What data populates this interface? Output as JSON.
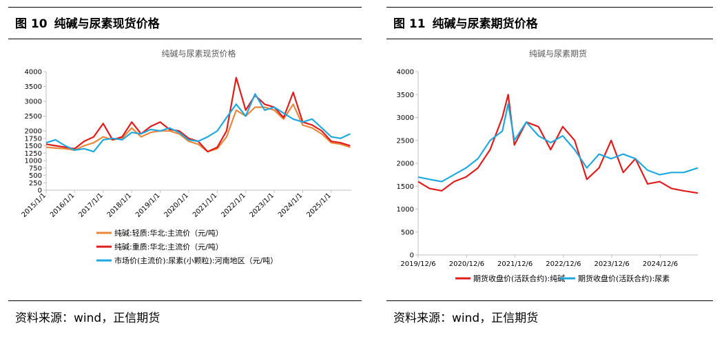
{
  "figures": [
    {
      "fig_label": "图 10",
      "fig_title": "纯碱与尿素现货价格",
      "source": "资料来源：wind，正信期货"
    },
    {
      "fig_label": "图 11",
      "fig_title": "纯碱与尿素期货价格",
      "source": "资料来源：wind，正信期货"
    }
  ],
  "colors": {
    "orange": "#E8873A",
    "red": "#E01B1B",
    "blue": "#1FA8DF",
    "axis": "#BFBFBF",
    "text": "#595959"
  },
  "chart_data": [
    {
      "type": "line",
      "title": "纯碱与尿素现货价格",
      "xlabel": "",
      "ylabel": "",
      "ylim": [
        0,
        4000
      ],
      "yticks": [
        0,
        250,
        500,
        750,
        1000,
        1250,
        1500,
        1750,
        2000,
        2500,
        3000,
        3500,
        4000
      ],
      "ytick_labels": [
        "0",
        "250",
        "500",
        "750",
        "1000",
        "1250",
        "1500",
        "1750",
        "2000",
        "2500",
        "3000",
        "3500",
        "4000"
      ],
      "xlim": [
        "2015-01-01",
        "2025-09-15"
      ],
      "xticks": [
        "2015/1/1",
        "2016/1/1",
        "2017/1/1",
        "2018/1/1",
        "2019/1/1",
        "2020/1/1",
        "2021/1/1",
        "2022/1/1",
        "2023/1/1",
        "2024/1/1",
        "2025/1/1"
      ],
      "legend_position": "bottom",
      "x": [
        "2015-01-01",
        "2015-05-01",
        "2015-09-01",
        "2016-01-01",
        "2016-05-01",
        "2016-09-01",
        "2017-01-01",
        "2017-05-01",
        "2017-09-01",
        "2018-01-01",
        "2018-05-01",
        "2018-09-01",
        "2019-01-01",
        "2019-05-01",
        "2019-09-01",
        "2020-01-01",
        "2020-05-01",
        "2020-09-01",
        "2021-01-01",
        "2021-05-01",
        "2021-09-01",
        "2022-01-01",
        "2022-05-01",
        "2022-09-01",
        "2023-01-01",
        "2023-05-01",
        "2023-09-01",
        "2024-01-01",
        "2024-05-01",
        "2024-09-01",
        "2025-01-01",
        "2025-05-01",
        "2025-09-01"
      ],
      "series": [
        {
          "name": "纯碱:轻质:华北:主流价（元/吨）",
          "color": "#E8873A",
          "values": [
            1450,
            1420,
            1400,
            1350,
            1500,
            1600,
            1800,
            1700,
            1750,
            2100,
            1800,
            1950,
            2000,
            2000,
            1900,
            1650,
            1550,
            1300,
            1400,
            1800,
            2700,
            2500,
            2800,
            2800,
            2700,
            2400,
            2900,
            2200,
            2100,
            1900,
            1600,
            1550,
            1450
          ]
        },
        {
          "name": "纯碱:重质:华北:主流价（元/吨）",
          "color": "#E01B1B",
          "values": [
            1550,
            1500,
            1450,
            1400,
            1650,
            1800,
            2250,
            1700,
            1800,
            2300,
            1900,
            2150,
            2300,
            2050,
            2000,
            1750,
            1650,
            1300,
            1450,
            2000,
            3800,
            2700,
            3200,
            2900,
            2800,
            2450,
            3300,
            2300,
            2200,
            2000,
            1650,
            1600,
            1500
          ]
        },
        {
          "name": "市场价(主流价):尿素(小颗粒):河南地区（元/吨）",
          "color": "#1FA8DF",
          "values": [
            1600,
            1700,
            1500,
            1350,
            1400,
            1300,
            1700,
            1750,
            1700,
            1950,
            1900,
            2050,
            2000,
            2100,
            1950,
            1700,
            1650,
            1800,
            2000,
            2450,
            2900,
            2500,
            3250,
            2700,
            2800,
            2600,
            2400,
            2300,
            2400,
            2100,
            1800,
            1750,
            1900
          ]
        }
      ]
    },
    {
      "type": "line",
      "title": "纯碱与尿素期货",
      "xlabel": "",
      "ylabel": "",
      "ylim": [
        0,
        4000
      ],
      "yticks": [
        0,
        500,
        1000,
        1500,
        2000,
        2500,
        3000,
        3500,
        4000
      ],
      "ytick_labels": [
        "0",
        "500",
        "1000",
        "1500",
        "2000",
        "2500",
        "3000",
        "3500",
        "4000"
      ],
      "xlim": [
        "2019-12-06",
        "2025-09-15"
      ],
      "xticks": [
        "2019/12/6",
        "2020/12/6",
        "2021/12/6",
        "2022/12/6",
        "2023/12/6",
        "2024/12/6"
      ],
      "legend_position": "bottom",
      "x": [
        "2019-12-06",
        "2020-03-01",
        "2020-06-01",
        "2020-09-01",
        "2020-12-01",
        "2021-03-01",
        "2021-06-01",
        "2021-09-01",
        "2021-10-15",
        "2021-12-01",
        "2022-03-01",
        "2022-06-01",
        "2022-09-01",
        "2022-12-01",
        "2023-03-01",
        "2023-06-01",
        "2023-09-01",
        "2023-12-01",
        "2024-03-01",
        "2024-06-01",
        "2024-09-01",
        "2024-12-01",
        "2025-03-01",
        "2025-06-01",
        "2025-09-15"
      ],
      "series": [
        {
          "name": "期货收盘价(活跃合约):纯碱",
          "color": "#E01B1B",
          "values": [
            1600,
            1450,
            1400,
            1600,
            1700,
            1900,
            2300,
            3000,
            3500,
            2400,
            2900,
            2800,
            2300,
            2800,
            2500,
            1650,
            1900,
            2500,
            1800,
            2100,
            1550,
            1600,
            1450,
            1400,
            1350
          ]
        },
        {
          "name": "期货收盘价(活跃合约):尿素",
          "color": "#1FA8DF",
          "values": [
            1700,
            1650,
            1600,
            1750,
            1900,
            2100,
            2500,
            2700,
            3300,
            2500,
            2900,
            2600,
            2450,
            2600,
            2300,
            1900,
            2200,
            2100,
            2200,
            2100,
            1850,
            1750,
            1800,
            1800,
            1900
          ]
        }
      ]
    }
  ]
}
